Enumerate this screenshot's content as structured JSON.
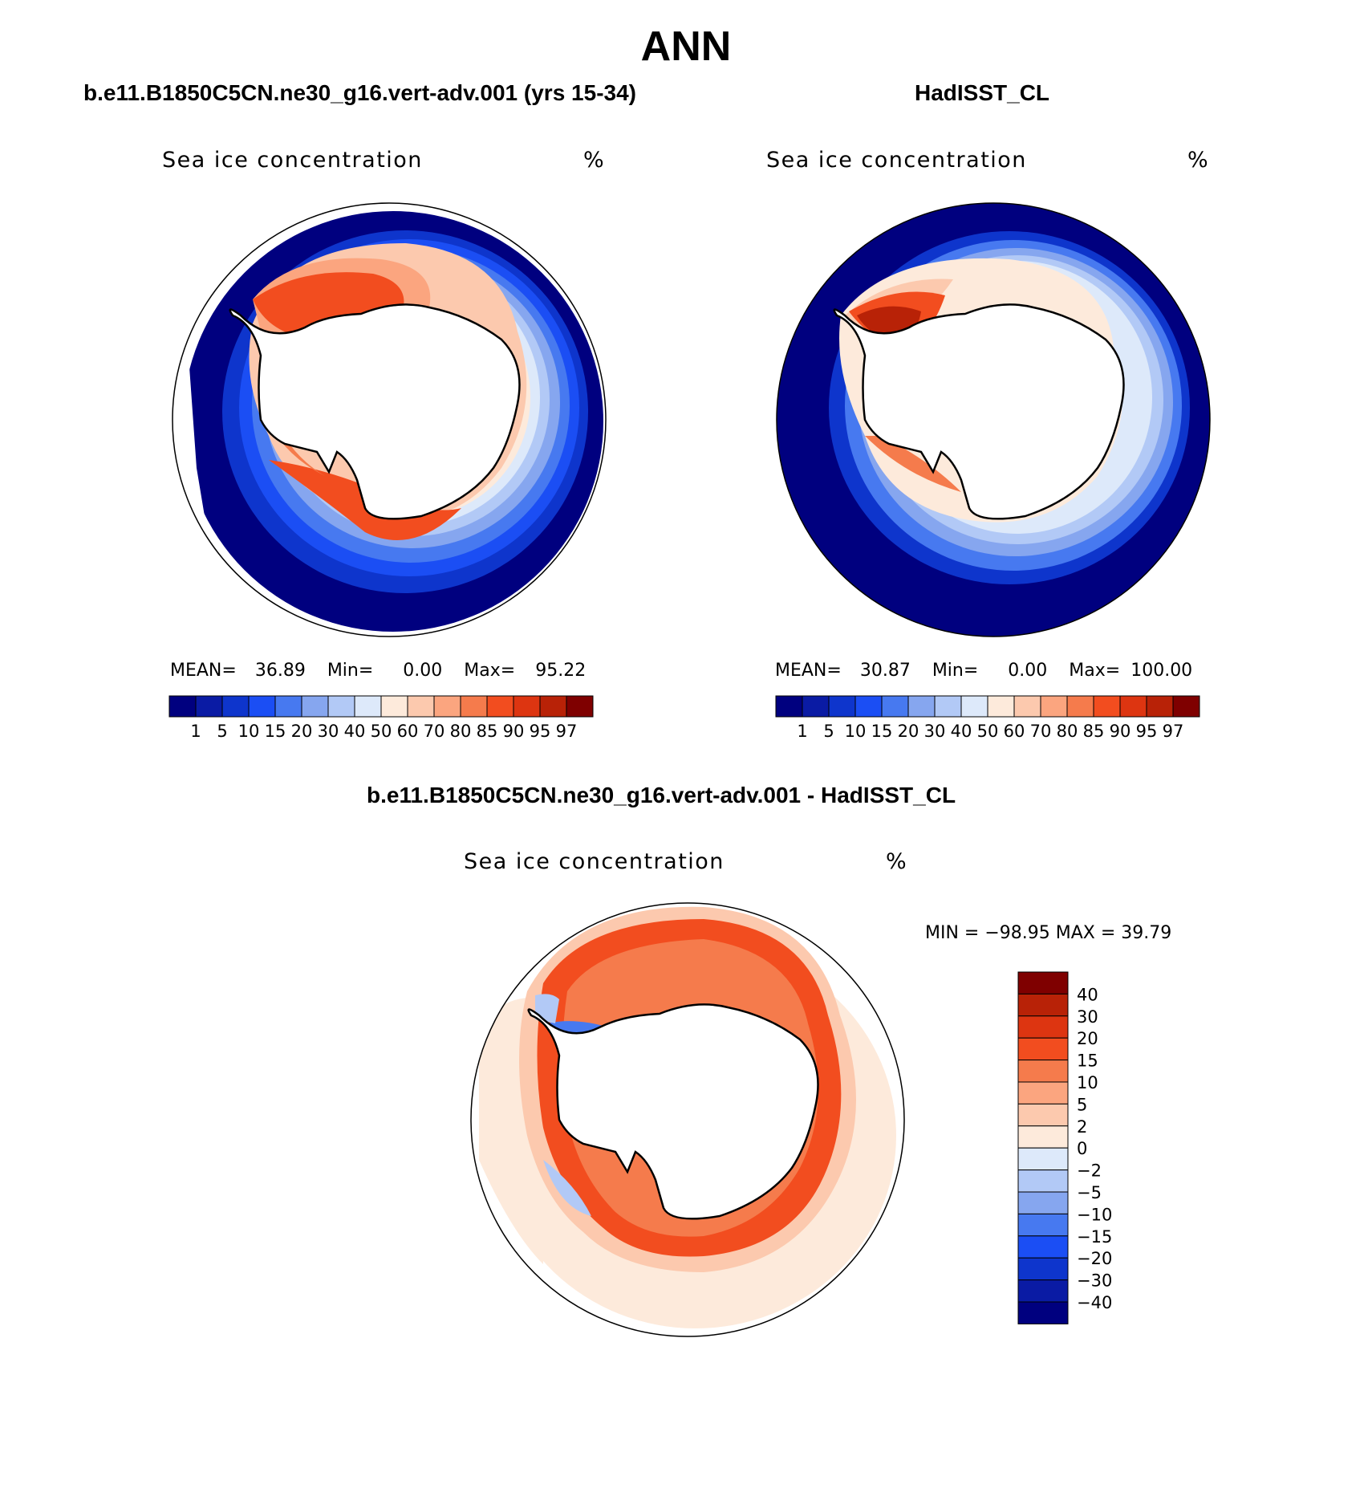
{
  "title": "ANN",
  "colors": {
    "abs_scale": [
      "#00007f",
      "#0a1ba4",
      "#0e35cc",
      "#1b4ef4",
      "#4779f0",
      "#86a6ef",
      "#b2c9f6",
      "#dde9fa",
      "#fdeadb",
      "#fcc9ae",
      "#fba57f",
      "#f57b4c",
      "#f24d1f",
      "#dd3511",
      "#b82207",
      "#7f0000"
    ],
    "diff_scale": [
      "#00007f",
      "#0a1ba4",
      "#0e35cc",
      "#1b4ef4",
      "#4779f0",
      "#86a6ef",
      "#b2c9f6",
      "#dde9fa",
      "#fdeadb",
      "#fcc9ae",
      "#fba57f",
      "#f57b4c",
      "#f24d1f",
      "#dd3511",
      "#b82207",
      "#7f0000"
    ]
  },
  "panels": {
    "model": {
      "case_title": "b.e11.B1850C5CN.ne30_g16.vert-adv.001 (yrs 15-34)",
      "variable": "Sea ice concentration",
      "units": "%",
      "stats": {
        "mean_label": "MEAN=",
        "mean": "36.89",
        "min_label": "Min=",
        "min": "0.00",
        "max_label": "Max=",
        "max": "95.22"
      },
      "colorbar_ticks": [
        "1",
        "5",
        "10",
        "15",
        "20",
        "30",
        "40",
        "50",
        "60",
        "70",
        "80",
        "85",
        "90",
        "95",
        "97"
      ]
    },
    "obs": {
      "case_title": "HadISST_CL",
      "variable": "Sea ice concentration",
      "units": "%",
      "stats": {
        "mean_label": "MEAN=",
        "mean": "30.87",
        "min_label": "Min=",
        "min": "0.00",
        "max_label": "Max=",
        "max": "100.00"
      },
      "colorbar_ticks": [
        "1",
        "5",
        "10",
        "15",
        "20",
        "30",
        "40",
        "50",
        "60",
        "70",
        "80",
        "85",
        "90",
        "95",
        "97"
      ]
    },
    "diff": {
      "case_title": "b.e11.B1850C5CN.ne30_g16.vert-adv.001 - HadISST_CL",
      "variable": "Sea ice concentration",
      "units": "%",
      "minmax": "MIN = −98.95 MAX =   39.79",
      "colorbar_ticks": [
        "40",
        "30",
        "20",
        "15",
        "10",
        "5",
        "2",
        "0",
        "−2",
        "−5",
        "−10",
        "−15",
        "−20",
        "−30",
        "−40"
      ]
    }
  }
}
